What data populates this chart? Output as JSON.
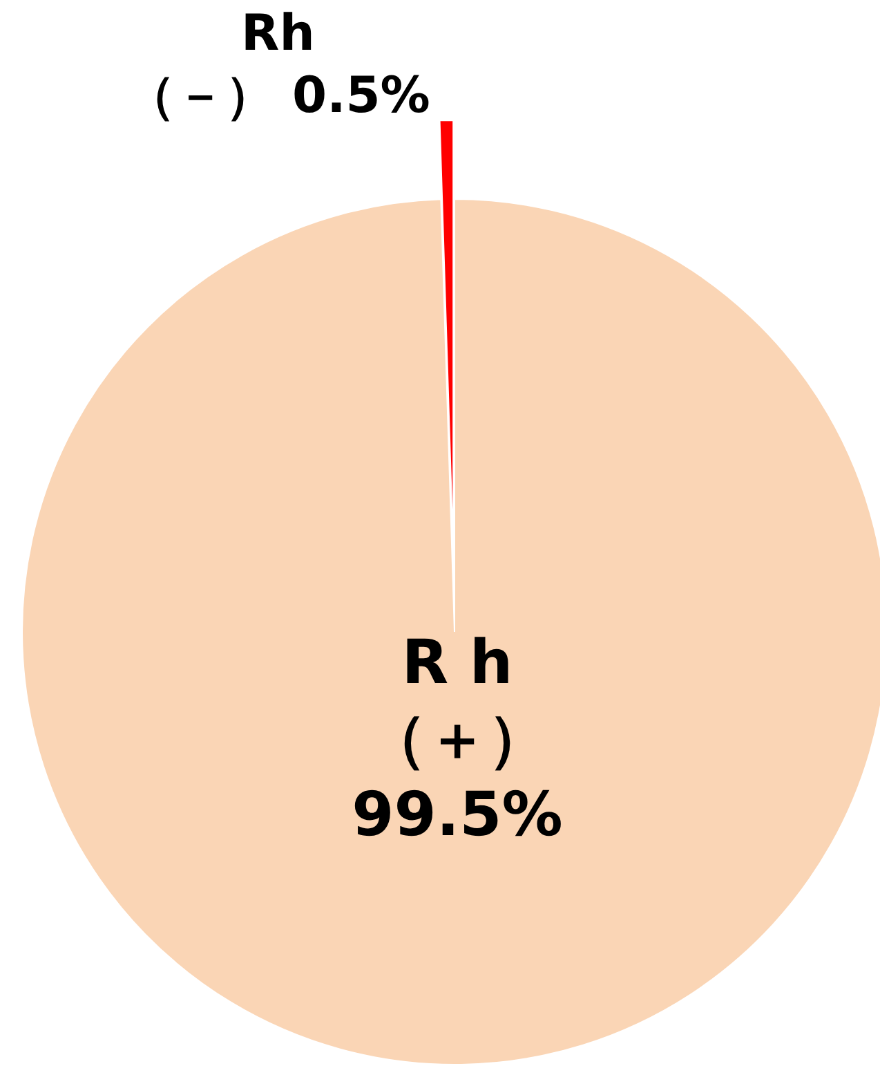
{
  "chart_data": {
    "type": "pie",
    "categories": [
      "R h\n（＋）",
      "Rh\n（－）"
    ],
    "values": [
      99.5,
      0.5
    ],
    "colors": [
      "#fad5b5",
      "#ff0000"
    ],
    "value_labels": [
      "99.5%",
      "0.5%"
    ]
  }
}
